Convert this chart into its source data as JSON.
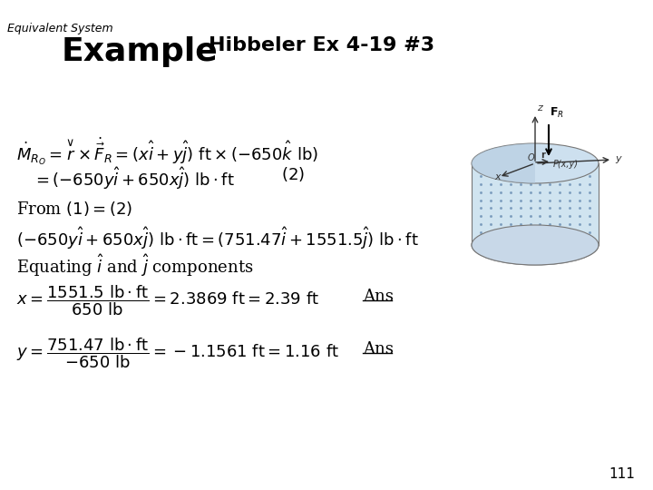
{
  "title_top": "Equivalent System",
  "title_main": "Example",
  "title_sub": "Hibbeler Ex 4-19 #3",
  "page_number": "111",
  "bg_color": "#ffffff",
  "text_color": "#000000"
}
